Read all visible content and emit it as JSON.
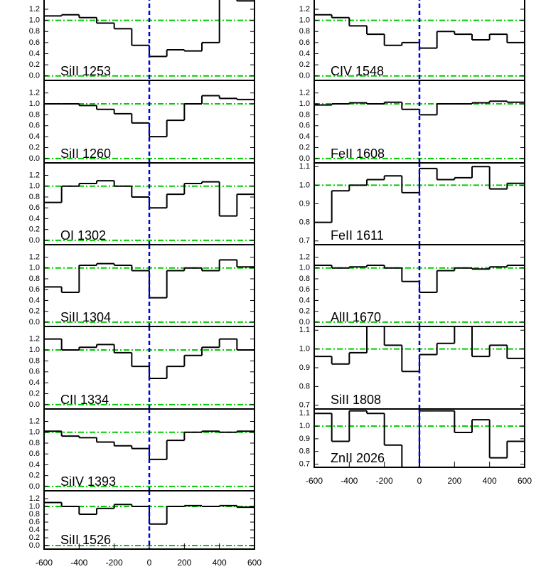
{
  "chart_data": [
    {
      "type": "step",
      "title": "SiII 1253",
      "x": [
        -600,
        -500,
        -400,
        -300,
        -200,
        -100,
        0,
        100,
        200,
        300,
        400,
        500
      ],
      "values": [
        1.08,
        1.1,
        1.05,
        0.95,
        0.85,
        0.55,
        0.35,
        0.47,
        0.45,
        0.6,
        1.4,
        1.35
      ],
      "xlim": [
        -600,
        600
      ],
      "ylim": [
        -0.08,
        1.43
      ],
      "yticks": [
        {
          "value": 0,
          "label": "0.0"
        },
        0.2,
        0.4,
        0.6,
        0.8,
        {
          "value": 1,
          "label": "1.0"
        },
        1.2
      ],
      "hlines": [
        0,
        1
      ],
      "hline_color": "#00cc00",
      "vline": 0,
      "vline_color": "#0000dd",
      "color": "#000000"
    },
    {
      "type": "step",
      "title": "SiII 1260",
      "x": [
        -600,
        -500,
        -400,
        -300,
        -200,
        -100,
        0,
        100,
        200,
        300,
        400,
        500
      ],
      "values": [
        1.0,
        1.0,
        0.97,
        0.9,
        0.82,
        0.65,
        0.4,
        0.7,
        1.0,
        1.15,
        1.1,
        1.08
      ],
      "xlim": [
        -600,
        600
      ],
      "ylim": [
        -0.08,
        1.43
      ],
      "yticks": [
        {
          "value": 0,
          "label": "0.0"
        },
        0.2,
        0.4,
        0.6,
        0.8,
        {
          "value": 1,
          "label": "1.0"
        },
        1.2
      ],
      "hlines": [
        0,
        1
      ],
      "hline_color": "#00cc00",
      "vline": 0,
      "vline_color": "#0000dd",
      "color": "#000000"
    },
    {
      "type": "step",
      "title": "OI 1302",
      "x": [
        -600,
        -500,
        -400,
        -300,
        -200,
        -100,
        0,
        100,
        200,
        300,
        400,
        500
      ],
      "values": [
        0.7,
        1.0,
        1.05,
        1.1,
        1.0,
        0.8,
        0.6,
        0.85,
        1.05,
        1.08,
        0.45,
        0.85
      ],
      "xlim": [
        -600,
        600
      ],
      "ylim": [
        -0.08,
        1.43
      ],
      "yticks": [
        {
          "value": 0,
          "label": "0.0"
        },
        0.2,
        0.4,
        0.6,
        0.8,
        {
          "value": 1,
          "label": "1.0"
        },
        1.2
      ],
      "hlines": [
        0,
        1
      ],
      "hline_color": "#00cc00",
      "vline": 0,
      "vline_color": "#0000dd",
      "color": "#000000"
    },
    {
      "type": "step",
      "title": "SiII 1304",
      "x": [
        -600,
        -500,
        -400,
        -300,
        -200,
        -100,
        0,
        100,
        200,
        300,
        400,
        500
      ],
      "values": [
        0.65,
        0.55,
        1.05,
        1.08,
        1.05,
        0.95,
        0.45,
        0.95,
        1.0,
        0.95,
        1.15,
        1.02
      ],
      "xlim": [
        -600,
        600
      ],
      "ylim": [
        -0.08,
        1.43
      ],
      "yticks": [
        {
          "value": 0,
          "label": "0.0"
        },
        0.2,
        0.4,
        0.6,
        0.8,
        {
          "value": 1,
          "label": "1.0"
        },
        1.2
      ],
      "hlines": [
        0,
        1
      ],
      "hline_color": "#00cc00",
      "vline": 0,
      "vline_color": "#0000dd",
      "color": "#000000"
    },
    {
      "type": "step",
      "title": "CII 1334",
      "x": [
        -600,
        -500,
        -400,
        -300,
        -200,
        -100,
        0,
        100,
        200,
        300,
        400,
        500
      ],
      "values": [
        1.2,
        1.0,
        1.05,
        1.1,
        0.95,
        0.7,
        0.48,
        0.7,
        0.9,
        1.05,
        1.2,
        1.0
      ],
      "xlim": [
        -600,
        600
      ],
      "ylim": [
        -0.08,
        1.43
      ],
      "yticks": [
        {
          "value": 0,
          "label": "0.0"
        },
        0.2,
        0.4,
        0.6,
        0.8,
        {
          "value": 1,
          "label": "1.0"
        },
        1.2
      ],
      "hlines": [
        0,
        1
      ],
      "hline_color": "#00cc00",
      "vline": 0,
      "vline_color": "#0000dd",
      "color": "#000000"
    },
    {
      "type": "step",
      "title": "SiIV 1393",
      "x": [
        -600,
        -500,
        -400,
        -300,
        -200,
        -100,
        0,
        100,
        200,
        300,
        400,
        500
      ],
      "values": [
        1.02,
        0.93,
        0.9,
        0.82,
        0.75,
        0.7,
        0.5,
        0.85,
        1.0,
        1.02,
        1.0,
        1.02
      ],
      "xlim": [
        -600,
        600
      ],
      "ylim": [
        -0.08,
        1.43
      ],
      "yticks": [
        {
          "value": 0,
          "label": "0.0"
        },
        0.2,
        0.4,
        0.6,
        0.8,
        {
          "value": 1,
          "label": "1.0"
        },
        1.2
      ],
      "hlines": [
        0,
        1
      ],
      "hline_color": "#00cc00",
      "vline": 0,
      "vline_color": "#0000dd",
      "color": "#000000"
    },
    {
      "type": "step",
      "title": "SiII 1526",
      "x": [
        -600,
        -500,
        -400,
        -300,
        -200,
        -100,
        0,
        100,
        200,
        300,
        400,
        500
      ],
      "values": [
        1.1,
        1.0,
        0.8,
        0.95,
        1.05,
        1.0,
        0.55,
        1.0,
        1.02,
        1.0,
        1.02,
        0.98
      ],
      "xlim": [
        -600,
        600
      ],
      "ylim": [
        -0.09,
        1.4
      ],
      "yticks": [
        {
          "value": 0,
          "label": "0.0"
        },
        0.2,
        0.4,
        0.6,
        0.8,
        {
          "value": 1,
          "label": "1.0"
        },
        1.2
      ],
      "xticks": [
        -600,
        -400,
        -200,
        0,
        200,
        400,
        600
      ],
      "hlines": [
        0,
        1
      ],
      "hline_color": "#00cc00",
      "vline": 0,
      "vline_color": "#0000dd",
      "color": "#000000"
    },
    {
      "type": "step",
      "title": "CIV 1548",
      "x": [
        -600,
        -500,
        -400,
        -300,
        -200,
        -100,
        0,
        100,
        200,
        300,
        400,
        500
      ],
      "values": [
        1.1,
        1.05,
        0.9,
        0.75,
        0.55,
        0.6,
        0.5,
        0.8,
        0.75,
        0.65,
        0.75,
        0.6
      ],
      "xlim": [
        -600,
        600
      ],
      "ylim": [
        -0.08,
        1.43
      ],
      "yticks": [
        {
          "value": 0,
          "label": "0.0"
        },
        0.2,
        0.4,
        0.6,
        0.8,
        {
          "value": 1,
          "label": "1.0"
        },
        1.2
      ],
      "hlines": [
        0,
        1
      ],
      "hline_color": "#00cc00",
      "vline": 0,
      "vline_color": "#0000dd",
      "color": "#000000"
    },
    {
      "type": "step",
      "title": "FeII 1608",
      "x": [
        -600,
        -500,
        -400,
        -300,
        -200,
        -100,
        0,
        100,
        200,
        300,
        400,
        500
      ],
      "values": [
        0.98,
        1.0,
        1.02,
        1.0,
        1.03,
        0.9,
        0.8,
        1.0,
        1.0,
        1.02,
        1.05,
        1.03
      ],
      "xlim": [
        -600,
        600
      ],
      "ylim": [
        -0.08,
        1.43
      ],
      "yticks": [
        {
          "value": 0,
          "label": "0.0"
        },
        0.2,
        0.4,
        0.6,
        0.8,
        {
          "value": 1,
          "label": "1.0"
        },
        1.2
      ],
      "hlines": [
        0,
        1
      ],
      "hline_color": "#00cc00",
      "vline": 0,
      "vline_color": "#0000dd",
      "color": "#000000"
    },
    {
      "type": "step",
      "title": "FeII 1611",
      "x": [
        -600,
        -500,
        -400,
        -300,
        -200,
        -100,
        0,
        100,
        200,
        300,
        400,
        500
      ],
      "values": [
        0.8,
        0.97,
        1.0,
        1.03,
        1.05,
        0.96,
        1.09,
        1.03,
        1.04,
        1.1,
        0.98,
        1.01
      ],
      "xlim": [
        -600,
        600
      ],
      "ylim": [
        0.68,
        1.12
      ],
      "yticks": [
        0.7,
        0.8,
        0.9,
        {
          "value": 1,
          "label": "1.0"
        },
        1.1
      ],
      "hlines": [
        1
      ],
      "hline_color": "#00cc00",
      "vline": 0,
      "vline_color": "#0000dd",
      "color": "#000000"
    },
    {
      "type": "step",
      "title": "AlII 1670",
      "x": [
        -600,
        -500,
        -400,
        -300,
        -200,
        -100,
        0,
        100,
        200,
        300,
        400,
        500
      ],
      "values": [
        1.05,
        1.0,
        1.02,
        1.05,
        1.0,
        0.75,
        0.55,
        0.95,
        1.0,
        0.98,
        1.02,
        1.05
      ],
      "xlim": [
        -600,
        600
      ],
      "ylim": [
        -0.08,
        1.43
      ],
      "yticks": [
        {
          "value": 0,
          "label": "0.0"
        },
        0.2,
        0.4,
        0.6,
        0.8,
        {
          "value": 1,
          "label": "1.0"
        },
        1.2
      ],
      "hlines": [
        0,
        1
      ],
      "hline_color": "#00cc00",
      "vline": 0,
      "vline_color": "#0000dd",
      "color": "#000000"
    },
    {
      "type": "step",
      "title": "SiII 1808",
      "x": [
        -600,
        -500,
        -400,
        -300,
        -200,
        -100,
        0,
        100,
        200,
        300,
        400,
        500
      ],
      "values": [
        0.96,
        0.92,
        0.98,
        1.12,
        1.02,
        0.88,
        0.97,
        1.03,
        1.12,
        0.96,
        1.02,
        0.95
      ],
      "xlim": [
        -600,
        600
      ],
      "ylim": [
        0.68,
        1.12
      ],
      "yticks": [
        0.7,
        0.8,
        0.9,
        {
          "value": 1,
          "label": "1.0"
        },
        1.1
      ],
      "hlines": [
        1
      ],
      "hline_color": "#00cc00",
      "vline": 0,
      "vline_color": "#0000dd",
      "color": "#000000"
    },
    {
      "type": "step",
      "title": "ZnII 2026",
      "x": [
        -600,
        -500,
        -400,
        -300,
        -200,
        -100,
        0,
        100,
        200,
        300,
        400,
        500
      ],
      "values": [
        1.1,
        0.88,
        1.12,
        1.1,
        0.85,
        0.6,
        1.12,
        1.12,
        0.95,
        1.05,
        0.75,
        0.88
      ],
      "xlim": [
        -600,
        600
      ],
      "ylim": [
        0.675,
        1.135
      ],
      "yticks": [
        0.7,
        0.8,
        0.9,
        {
          "value": 1,
          "label": "1.0"
        },
        1.1
      ],
      "xticks": [
        -600,
        -400,
        -200,
        0,
        200,
        400,
        600
      ],
      "hlines": [
        1
      ],
      "hline_color": "#00cc00",
      "vline": 0,
      "vline_color": "#0000dd",
      "color": "#000000"
    }
  ]
}
